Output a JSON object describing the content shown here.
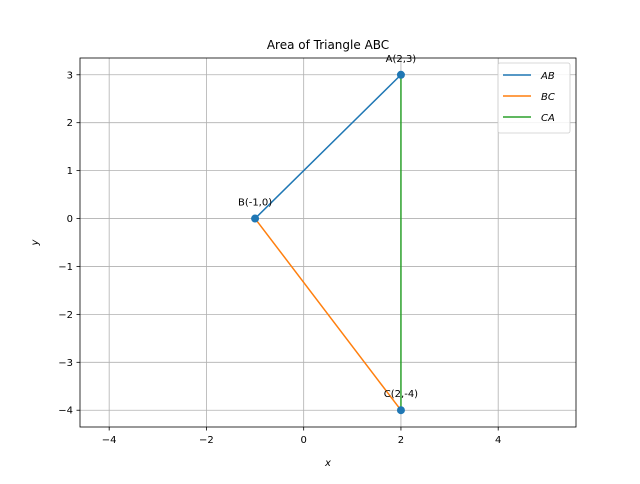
{
  "chart_data": {
    "type": "line",
    "title": "Area of Triangle ABC",
    "xlabel": "x",
    "ylabel": "y",
    "xlim": [
      -4.6,
      5.6
    ],
    "ylim": [
      -4.35,
      3.35
    ],
    "xticks": [
      -4,
      -2,
      0,
      2,
      4
    ],
    "yticks": [
      -4,
      -3,
      -2,
      -1,
      0,
      1,
      2,
      3
    ],
    "xtick_labels": [
      "−4",
      "−2",
      "0",
      "2",
      "4"
    ],
    "ytick_labels": [
      "−4",
      "−3",
      "−2",
      "−1",
      "0",
      "1",
      "2",
      "3"
    ],
    "grid": true,
    "legend_position": "top-right",
    "series": [
      {
        "name": "AB",
        "color": "#1f77b4",
        "x": [
          2,
          -1
        ],
        "y": [
          3,
          0
        ]
      },
      {
        "name": "BC",
        "color": "#ff7f0e",
        "x": [
          -1,
          2
        ],
        "y": [
          0,
          -4
        ]
      },
      {
        "name": "CA",
        "color": "#2ca02c",
        "x": [
          2,
          2
        ],
        "y": [
          -4,
          3
        ]
      }
    ],
    "points": [
      {
        "label": "A(2,3)",
        "x": 2,
        "y": 3
      },
      {
        "label": "B(-1,0)",
        "x": -1,
        "y": 0
      },
      {
        "label": "C(2,-4)",
        "x": 2,
        "y": -4
      }
    ],
    "point_color": "#1f77b4"
  }
}
